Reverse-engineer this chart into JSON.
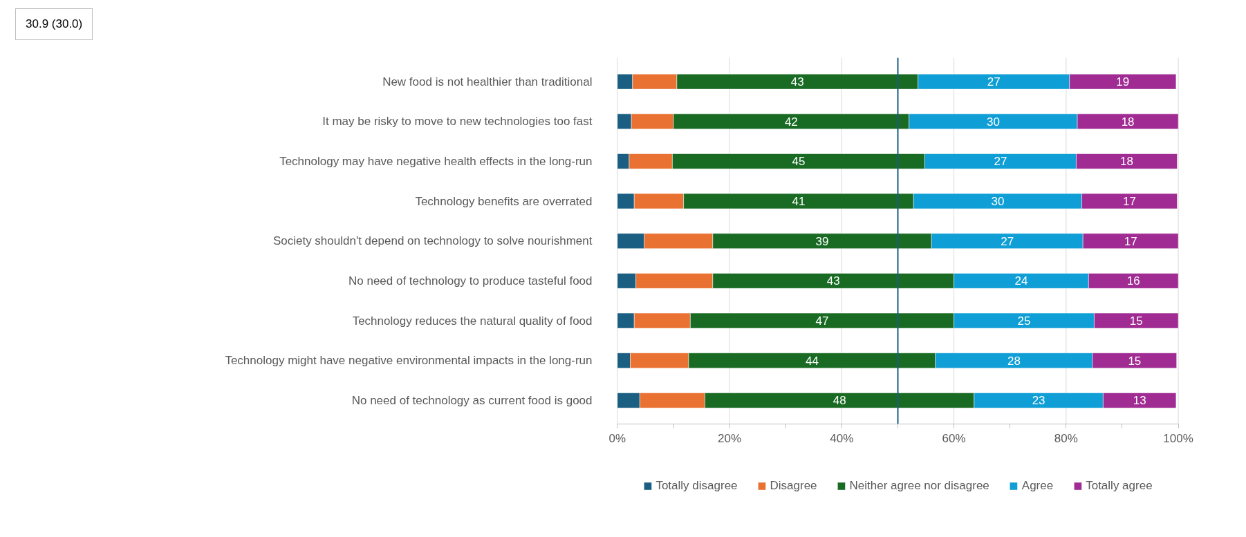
{
  "chart_data": {
    "type": "bar",
    "orientation": "horizontal",
    "stacked": true,
    "categories": [
      "New food is not healthier than traditional",
      "It may be risky to move to new technologies too fast",
      "Technology may have negative health effects in the long-run",
      "Technology benefits are overrated",
      "Society shouldn't depend on technology to solve nourishment",
      "No need of technology to produce tasteful food",
      "Technology reduces the natural quality of food",
      "Technology might have negative environmental impacts in the long-run",
      "No need of technology as current food is good"
    ],
    "series": [
      {
        "name": "Totally disagree",
        "color": "#1a5e82",
        "values": [
          2.7,
          2.5,
          2.1,
          3.0,
          4.8,
          3.3,
          3.0,
          2.3,
          4.0
        ]
      },
      {
        "name": "Disagree",
        "color": "#e97132",
        "values": [
          7.9,
          7.5,
          7.7,
          8.8,
          12.2,
          13.7,
          10.0,
          10.4,
          11.6
        ]
      },
      {
        "name": "Neither agree nor disagree",
        "color": "#196b24",
        "values": [
          43,
          42,
          45,
          41,
          39,
          43,
          47,
          44,
          48
        ],
        "value_labels": [
          "43",
          "42",
          "45",
          "41",
          "39",
          "43",
          "47",
          "44",
          "48"
        ]
      },
      {
        "name": "Agree",
        "color": "#0f9ed5",
        "values": [
          27,
          30,
          27,
          30,
          27,
          24,
          25,
          28,
          23
        ],
        "value_labels": [
          "27",
          "30",
          "27",
          "30",
          "27",
          "24",
          "25",
          "28",
          "23"
        ]
      },
      {
        "name": "Totally agree",
        "color": "#a02b93",
        "values": [
          19,
          18,
          18,
          17,
          17,
          16,
          15,
          15,
          13
        ],
        "value_labels": [
          "19",
          "18",
          "18",
          "17",
          "17",
          "16",
          "15",
          "15",
          "13"
        ]
      }
    ],
    "xlim": [
      0,
      100
    ],
    "xticks": [
      {
        "value": 0,
        "label": "0%"
      },
      {
        "value": 10,
        "label": null
      },
      {
        "value": 20,
        "label": "20%"
      },
      {
        "value": 30,
        "label": null
      },
      {
        "value": 40,
        "label": "40%"
      },
      {
        "value": 50,
        "label": null
      },
      {
        "value": 60,
        "label": "60%"
      },
      {
        "value": 70,
        "label": null
      },
      {
        "value": 80,
        "label": "80%"
      },
      {
        "value": 90,
        "label": null
      },
      {
        "value": 100,
        "label": "100%"
      }
    ],
    "grid": "x",
    "legend": "bottom",
    "ref_lines": [
      {
        "axis": "x",
        "value": 50,
        "color": "#1a5e82"
      }
    ],
    "annotations": [
      "30.9 (30.0)"
    ]
  }
}
